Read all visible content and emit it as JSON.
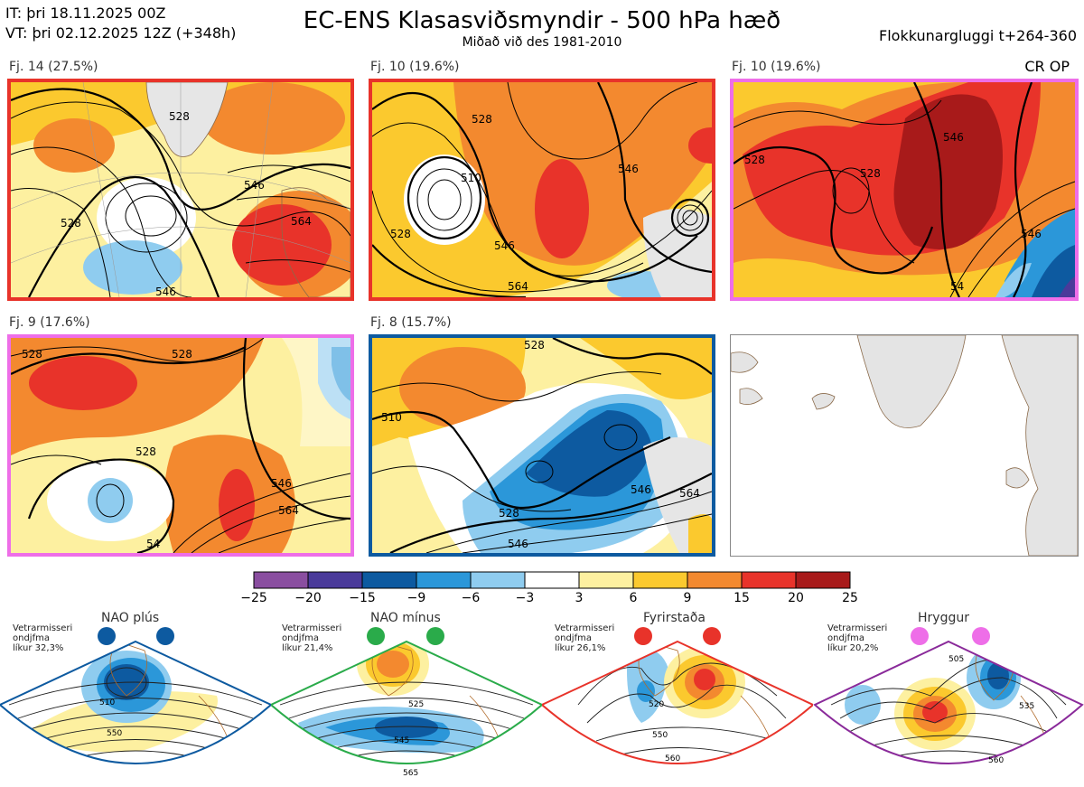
{
  "header": {
    "init_time": "IT: þri 18.11.2025 00Z",
    "valid_time": "VT: þri 02.12.2025 12Z  (+348h)",
    "title": "EC-ENS Klasasviðsmyndir - 500 hPa hæð",
    "subtitle": "Miðað við des 1981-2010",
    "window": "Flokkunargluggi t+264-360"
  },
  "panels": [
    {
      "label": "Fj. 14 (27.5%)",
      "border_color": "#e8332a",
      "contour_labels": [
        "528",
        "546",
        "564",
        "546",
        "528"
      ]
    },
    {
      "label": "Fj. 10 (19.6%)",
      "border_color": "#e8332a",
      "contour_labels": [
        "510",
        "528",
        "546",
        "564",
        "546",
        "528"
      ]
    },
    {
      "label": "Fj. 10 (19.6%)",
      "border_color": "#ee6ee8",
      "contour_labels": [
        "528",
        "546",
        "528",
        "546",
        "54"
      ],
      "badge": "CR OP"
    },
    {
      "label": "Fj. 9 (17.6%)",
      "border_color": "#ee6ee8",
      "contour_labels": [
        "528",
        "528",
        "546",
        "564",
        "528",
        "54"
      ]
    },
    {
      "label": "Fj. 8 (15.7%)",
      "border_color": "#0d5aa0",
      "contour_labels": [
        "510",
        "528",
        "546",
        "564",
        "528",
        "546"
      ]
    }
  ],
  "colorbar": {
    "ticks": [
      "−25",
      "−20",
      "−15",
      "−9",
      "−6",
      "−3",
      "3",
      "6",
      "9",
      "15",
      "20",
      "25"
    ],
    "colors": [
      "#8a4ea0",
      "#4a3a9a",
      "#0d5aa0",
      "#2b97d9",
      "#8fccef",
      "#ffffff",
      "#fdf0a0",
      "#fbc92e",
      "#f3892f",
      "#e8332a",
      "#a81a1a"
    ]
  },
  "regimes": [
    {
      "name": "NAO plús",
      "line1": "Vetrarmisseri",
      "line2": "ondjfma",
      "line3": "líkur 32,3%",
      "color": "#0d5aa0",
      "contour_labels": [
        "510",
        "550"
      ]
    },
    {
      "name": "NAO mínus",
      "line1": "Vetrarmisseri",
      "line2": "ondjfma",
      "line3": "líkur 21,4%",
      "color": "#2aab4a",
      "contour_labels": [
        "525",
        "545",
        "565"
      ]
    },
    {
      "name": "Fyrirstaða",
      "line1": "Vetrarmisseri",
      "line2": "ondjfma",
      "line3": "líkur 26,1%",
      "color": "#e8332a",
      "contour_labels": [
        "520",
        "550",
        "560"
      ]
    },
    {
      "name": "Hryggur",
      "line1": "Vetrarmisseri",
      "line2": "ondjfma",
      "line3": "líkur 20,2%",
      "color": "#8a2a9a",
      "contour_labels": [
        "505",
        "535",
        "560"
      ]
    }
  ]
}
